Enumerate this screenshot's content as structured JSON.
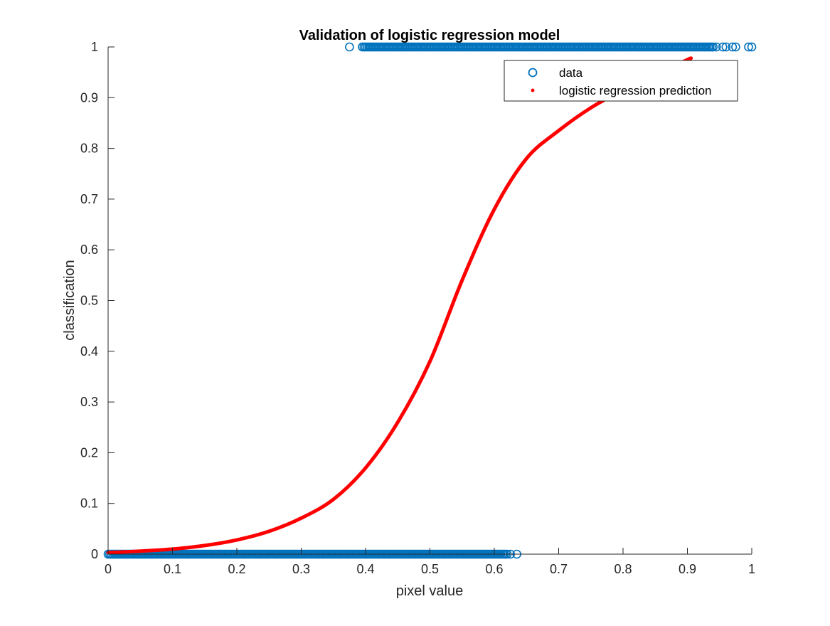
{
  "chart_data": {
    "type": "scatter",
    "title": "Validation of logistic regression model",
    "xlabel": "pixel value",
    "ylabel": "classification",
    "xlim": [
      0,
      1
    ],
    "ylim": [
      0,
      1
    ],
    "xticks": [
      0,
      0.1,
      0.2,
      0.3,
      0.4,
      0.5,
      0.6,
      0.7,
      0.8,
      0.9,
      1
    ],
    "xtick_labels": [
      "0",
      "0.1",
      "0.2",
      "0.3",
      "0.4",
      "0.5",
      "0.6",
      "0.7",
      "0.8",
      "0.9",
      "1"
    ],
    "yticks": [
      0,
      0.1,
      0.2,
      0.3,
      0.4,
      0.5,
      0.6,
      0.7,
      0.8,
      0.9,
      1
    ],
    "ytick_labels": [
      "0",
      "0.1",
      "0.2",
      "0.3",
      "0.4",
      "0.5",
      "0.6",
      "0.7",
      "0.8",
      "0.9",
      "1"
    ],
    "grid": false,
    "legend_position": "top-right",
    "series": [
      {
        "name": "data",
        "marker": "open-circle",
        "color": "#0072BD",
        "class1_dense_x_range": [
          0.395,
          0.94
        ],
        "class1_outlier_x": [
          0.375,
          0.945,
          0.955,
          0.96,
          0.97,
          0.975,
          0.995,
          1.0
        ],
        "class0_dense_x_range": [
          0.0,
          0.62
        ],
        "class0_outlier_x": [
          0.625,
          0.635
        ]
      },
      {
        "name": "logistic regression prediction",
        "marker": "dot",
        "color": "#FF0000",
        "x": [
          0.0,
          0.05,
          0.1,
          0.15,
          0.2,
          0.25,
          0.3,
          0.35,
          0.4,
          0.45,
          0.5,
          0.55,
          0.6,
          0.65,
          0.7,
          0.75,
          0.8,
          0.85,
          0.9,
          0.905
        ],
        "y": [
          0.003,
          0.006,
          0.01,
          0.017,
          0.028,
          0.045,
          0.071,
          0.108,
          0.17,
          0.26,
          0.38,
          0.54,
          0.68,
          0.78,
          0.835,
          0.88,
          0.915,
          0.945,
          0.975,
          0.977
        ]
      }
    ]
  }
}
